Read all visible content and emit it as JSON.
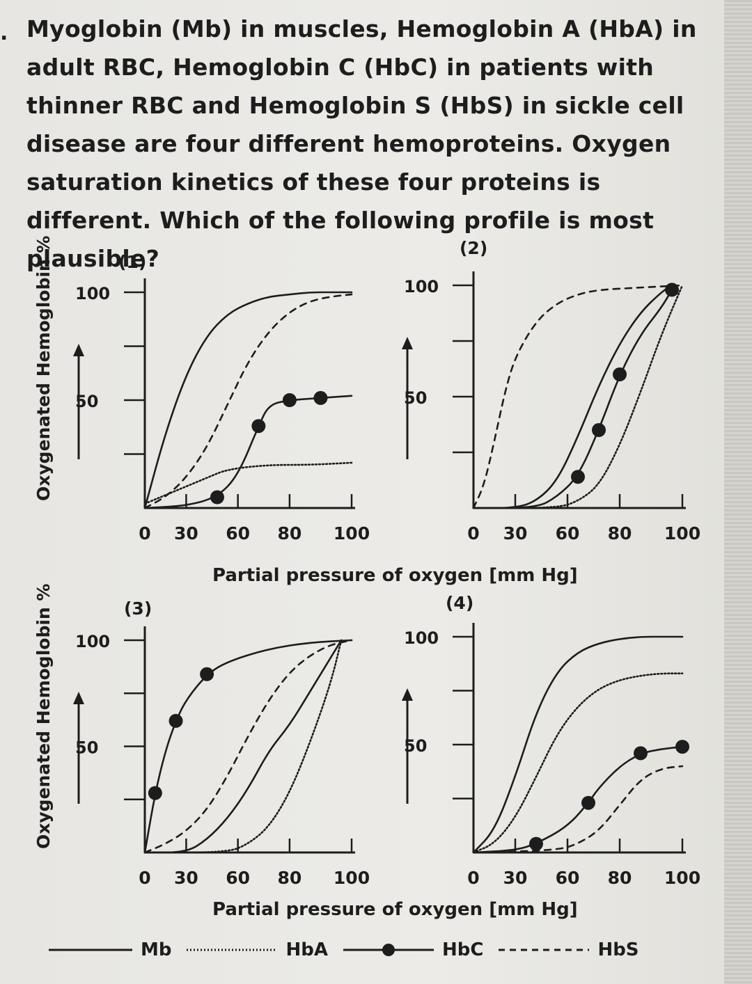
{
  "question": {
    "number": ".",
    "text": "Myoglobin (Mb) in muscles, Hemoglobin A (HbA) in adult RBC, Hemoglobin C (HbC) in patients with thinner RBC and Hemoglobin S (HbS) in sickle cell disease are four different hemoproteins. Oxygen saturation kinetics of these four proteins is different. Which of the following profile is most plausible?"
  },
  "y_axis_label": "Oxygenated Hemoglobin %",
  "x_axis_label": "Partial pressure of oxygen [mm Hg]",
  "legend": [
    {
      "label": "Mb",
      "style": "solid"
    },
    {
      "label": "HbA",
      "style": "dotted"
    },
    {
      "label": "HbC",
      "style": "solid-dot"
    },
    {
      "label": "HbS",
      "style": "dashed"
    }
  ],
  "chart_data": [
    {
      "type": "line",
      "label": "(1)",
      "x_ticks": [
        "0",
        "30",
        "60",
        "80",
        "100"
      ],
      "y_ticks": [
        "100",
        "50"
      ],
      "xlim": [
        0,
        100
      ],
      "ylim": [
        0,
        100
      ],
      "series": [
        {
          "name": "Mb",
          "style": "solid",
          "x": [
            0,
            10,
            20,
            30,
            40,
            50,
            60,
            70,
            80,
            90,
            100
          ],
          "y": [
            0,
            35,
            62,
            80,
            90,
            95,
            98,
            99,
            100,
            100,
            100
          ]
        },
        {
          "name": "HbA",
          "style": "dotted",
          "x": [
            0,
            10,
            20,
            30,
            40,
            60,
            80,
            100
          ],
          "y": [
            2,
            6,
            10,
            14,
            18,
            20,
            20,
            21
          ]
        },
        {
          "name": "HbC",
          "style": "solid-dot",
          "x": [
            0,
            20,
            35,
            45,
            55,
            60,
            70,
            85,
            100
          ],
          "y": [
            0,
            1,
            5,
            15,
            38,
            48,
            50,
            51,
            52
          ],
          "markers_x": [
            35,
            55,
            70,
            85
          ]
        },
        {
          "name": "HbS",
          "style": "dashed",
          "x": [
            0,
            10,
            20,
            30,
            40,
            50,
            60,
            70,
            80,
            90,
            100
          ],
          "y": [
            0,
            5,
            14,
            28,
            48,
            68,
            82,
            91,
            96,
            98,
            99
          ]
        }
      ]
    },
    {
      "type": "line",
      "label": "(2)",
      "x_ticks": [
        "0",
        "30",
        "60",
        "80",
        "100"
      ],
      "y_ticks": [
        "100",
        "50"
      ],
      "xlim": [
        0,
        100
      ],
      "ylim": [
        0,
        100
      ],
      "series": [
        {
          "name": "Mb",
          "style": "solid",
          "x": [
            0,
            20,
            30,
            40,
            50,
            60,
            70,
            80,
            90,
            95
          ],
          "y": [
            0,
            0,
            3,
            12,
            32,
            55,
            74,
            88,
            97,
            100
          ]
        },
        {
          "name": "HbA",
          "style": "dotted",
          "x": [
            0,
            40,
            50,
            60,
            70,
            80,
            90,
            100
          ],
          "y": [
            0,
            0,
            3,
            10,
            28,
            52,
            78,
            100
          ]
        },
        {
          "name": "HbC",
          "style": "solid-dot",
          "x": [
            0,
            30,
            40,
            50,
            60,
            70,
            80,
            90,
            95
          ],
          "y": [
            0,
            0,
            5,
            14,
            35,
            60,
            78,
            90,
            98
          ],
          "markers_x": [
            50,
            60,
            70,
            95
          ]
        },
        {
          "name": "HbS",
          "style": "dashed",
          "x": [
            0,
            5,
            10,
            15,
            20,
            30,
            40,
            50,
            60,
            80,
            100
          ],
          "y": [
            0,
            10,
            30,
            52,
            68,
            84,
            92,
            96,
            98,
            99,
            100
          ]
        }
      ]
    },
    {
      "type": "line",
      "label": "(3)",
      "x_ticks": [
        "0",
        "30",
        "60",
        "80",
        "100"
      ],
      "y_ticks": [
        "100",
        "50"
      ],
      "xlim": [
        0,
        100
      ],
      "ylim": [
        0,
        100
      ],
      "series": [
        {
          "name": "Mb",
          "style": "solid-dot",
          "x": [
            0,
            5,
            10,
            15,
            20,
            30,
            40,
            60,
            80,
            100
          ],
          "y": [
            0,
            28,
            48,
            62,
            72,
            84,
            90,
            96,
            99,
            100
          ],
          "markers_x": [
            5,
            15,
            30
          ]
        },
        {
          "name": "HbA",
          "style": "dotted",
          "x": [
            0,
            40,
            50,
            60,
            70,
            80,
            90,
            95
          ],
          "y": [
            0,
            0,
            4,
            12,
            28,
            52,
            80,
            100
          ]
        },
        {
          "name": "HbC",
          "style": "solid",
          "x": [
            0,
            20,
            30,
            40,
            50,
            60,
            70,
            80,
            90,
            95
          ],
          "y": [
            0,
            0,
            6,
            16,
            30,
            48,
            60,
            76,
            92,
            100
          ]
        },
        {
          "name": "HbS",
          "style": "dashed",
          "x": [
            0,
            10,
            20,
            30,
            40,
            50,
            60,
            70,
            80,
            90,
            100
          ],
          "y": [
            0,
            4,
            10,
            20,
            36,
            55,
            72,
            85,
            93,
            98,
            100
          ]
        }
      ]
    },
    {
      "type": "line",
      "label": "(4)",
      "x_ticks": [
        "0",
        "30",
        "60",
        "80",
        "100"
      ],
      "y_ticks": [
        "100",
        "50"
      ],
      "xlim": [
        0,
        100
      ],
      "ylim": [
        0,
        100
      ],
      "series": [
        {
          "name": "Mb",
          "style": "solid",
          "x": [
            0,
            10,
            20,
            30,
            40,
            50,
            60,
            70,
            80,
            90,
            100
          ],
          "y": [
            0,
            10,
            35,
            65,
            84,
            93,
            97,
            99,
            100,
            100,
            100
          ]
        },
        {
          "name": "HbA",
          "style": "dotted",
          "x": [
            0,
            10,
            20,
            30,
            40,
            50,
            60,
            70,
            80,
            90,
            100
          ],
          "y": [
            0,
            4,
            16,
            35,
            55,
            68,
            76,
            80,
            82,
            83,
            83
          ]
        },
        {
          "name": "HbC",
          "style": "solid-dot",
          "x": [
            0,
            20,
            30,
            45,
            55,
            60,
            70,
            80,
            90,
            100
          ],
          "y": [
            0,
            1,
            4,
            12,
            23,
            30,
            40,
            46,
            48,
            49
          ],
          "markers_x": [
            30,
            55,
            80,
            100
          ]
        },
        {
          "name": "HbS",
          "style": "dashed",
          "x": [
            0,
            40,
            50,
            60,
            70,
            80,
            90,
            100
          ],
          "y": [
            0,
            1,
            4,
            10,
            22,
            34,
            39,
            40
          ]
        }
      ]
    }
  ]
}
